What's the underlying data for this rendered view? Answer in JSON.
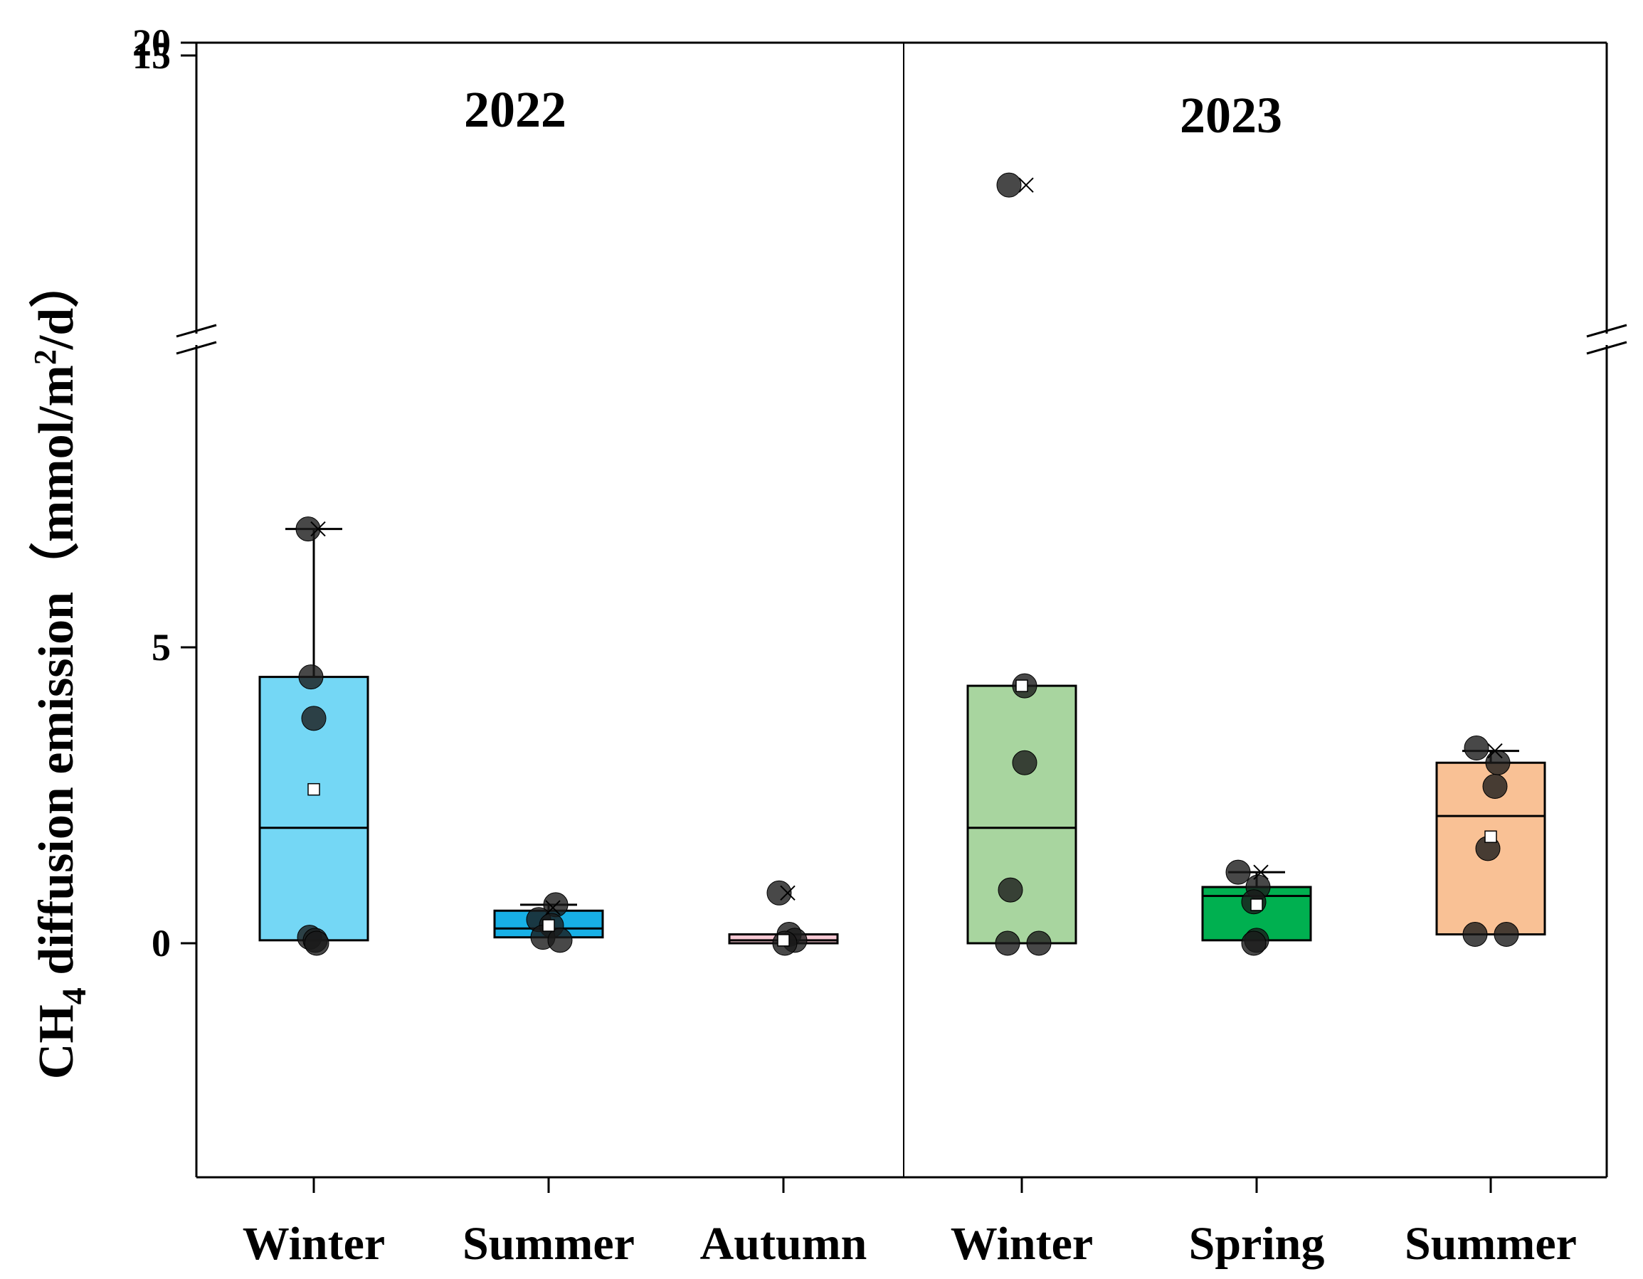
{
  "chart_data": {
    "type": "box",
    "ylabel": {
      "prefix": "CH",
      "sub": "4",
      "middle": " diffusion emission（mmol/m",
      "sup": "2",
      "suffix": "/d）"
    },
    "y_axis": {
      "scale": "broken",
      "lower_range": [
        -4,
        15
      ],
      "upper_range": [
        15,
        20
      ],
      "ticks": [
        "0",
        "5",
        "15",
        "20"
      ]
    },
    "groups": [
      {
        "year": "2022",
        "categories": [
          "Winter",
          "Summer",
          "Autumn"
        ]
      },
      {
        "year": "2023",
        "categories": [
          "Winter",
          "Spring",
          "Summer"
        ]
      }
    ],
    "boxes": [
      {
        "group": "2022",
        "category": "Winter",
        "color": "#74d7f5",
        "q1": 0.05,
        "median": 1.95,
        "q3": 4.5,
        "whisker_low": 0.05,
        "whisker_high": 7.0,
        "mean": 2.6,
        "points": [
          7.0,
          4.5,
          3.8,
          0.1,
          0.05,
          0.0
        ],
        "mark_x": [
          7.0
        ]
      },
      {
        "group": "2022",
        "category": "Summer",
        "color": "#17b0e6",
        "q1": 0.1,
        "median": 0.25,
        "q3": 0.55,
        "whisker_low": 0.05,
        "whisker_high": 0.65,
        "mean": 0.3,
        "points": [
          0.65,
          0.4,
          0.3,
          0.1,
          0.05
        ],
        "mark_x": [
          0.6
        ]
      },
      {
        "group": "2022",
        "category": "Autumn",
        "color": "#f8c9d4",
        "q1": 0.0,
        "median": 0.05,
        "q3": 0.15,
        "whisker_low": 0.0,
        "whisker_high": 0.15,
        "mean": 0.05,
        "points": [
          0.85,
          0.15,
          0.05,
          0.0
        ],
        "mark_x": [
          0.85
        ]
      },
      {
        "group": "2023",
        "category": "Winter",
        "color": "#a8d59f",
        "q1": 0.0,
        "median": 1.95,
        "q3": 4.35,
        "whisker_low": 0.0,
        "whisker_high": 4.35,
        "mean": 4.35,
        "points": [
          17.6,
          4.35,
          3.05,
          0.9,
          0.0,
          0.0
        ],
        "mark_x": [
          17.6
        ]
      },
      {
        "group": "2023",
        "category": "Spring",
        "color": "#00b050",
        "q1": 0.05,
        "median": 0.8,
        "q3": 0.95,
        "whisker_low": 0.05,
        "whisker_high": 1.2,
        "mean": 0.65,
        "points": [
          1.2,
          0.95,
          0.7,
          0.05,
          0.0
        ],
        "mark_x": [
          1.2
        ]
      },
      {
        "group": "2023",
        "category": "Summer",
        "color": "#f9c195",
        "q1": 0.15,
        "median": 2.15,
        "q3": 3.05,
        "whisker_low": 0.15,
        "whisker_high": 3.25,
        "mean": 1.8,
        "points": [
          3.3,
          3.05,
          2.65,
          1.6,
          0.15,
          0.15
        ],
        "mark_x": [
          3.25
        ]
      }
    ]
  }
}
